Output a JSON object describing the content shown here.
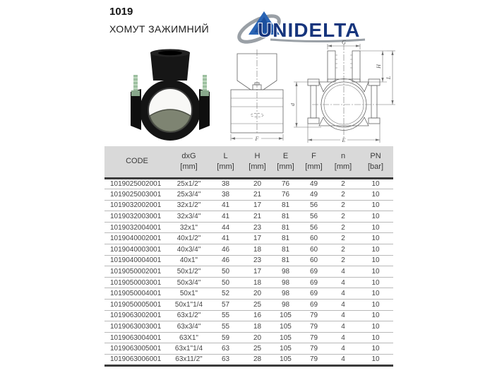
{
  "header": {
    "product_code": "1019",
    "product_name": "ХОМУТ ЗАЖИМНИЙ"
  },
  "logo": {
    "brand": "UNIDELTA",
    "colors": {
      "text": "#16357d",
      "triangle": "#2a64b4",
      "swoosh": "#9aa0a6"
    }
  },
  "drawings": {
    "side_view": {
      "dim_f": "F"
    },
    "section_view": {
      "dim_g": "G",
      "dim_h": "H",
      "dim_l": "L",
      "dim_d": "d",
      "dim_e": "E"
    }
  },
  "table": {
    "columns": [
      {
        "label": "CODE",
        "unit": ""
      },
      {
        "label": "dxG",
        "unit": "[mm]"
      },
      {
        "label": "L",
        "unit": "[mm]"
      },
      {
        "label": "H",
        "unit": "[mm]"
      },
      {
        "label": "E",
        "unit": "[mm]"
      },
      {
        "label": "F",
        "unit": "[mm]"
      },
      {
        "label": "n",
        "unit": "[mm]"
      },
      {
        "label": "PN",
        "unit": "[bar]"
      }
    ],
    "rows": [
      [
        "1019025002001",
        "25x1/2\"",
        "38",
        "20",
        "76",
        "49",
        "2",
        "10"
      ],
      [
        "1019025003001",
        "25x3/4\"",
        "38",
        "21",
        "76",
        "49",
        "2",
        "10"
      ],
      [
        "1019032002001",
        "32x1/2\"",
        "41",
        "17",
        "81",
        "56",
        "2",
        "10"
      ],
      [
        "1019032003001",
        "32x3/4\"",
        "41",
        "21",
        "81",
        "56",
        "2",
        "10"
      ],
      [
        "1019032004001",
        "32x1\"",
        "44",
        "23",
        "81",
        "56",
        "2",
        "10"
      ],
      [
        "1019040002001",
        "40x1/2\"",
        "41",
        "17",
        "81",
        "60",
        "2",
        "10"
      ],
      [
        "1019040003001",
        "40x3/4\"",
        "46",
        "18",
        "81",
        "60",
        "2",
        "10"
      ],
      [
        "1019040004001",
        "40x1\"",
        "46",
        "23",
        "81",
        "60",
        "2",
        "10"
      ],
      [
        "1019050002001",
        "50x1/2\"",
        "50",
        "17",
        "98",
        "69",
        "4",
        "10"
      ],
      [
        "1019050003001",
        "50x3/4\"",
        "50",
        "18",
        "98",
        "69",
        "4",
        "10"
      ],
      [
        "1019050004001",
        "50x1\"",
        "52",
        "20",
        "98",
        "69",
        "4",
        "10"
      ],
      [
        "1019050005001",
        "50x1\"1/4",
        "57",
        "25",
        "98",
        "69",
        "4",
        "10"
      ],
      [
        "1019063002001",
        "63x1/2\"",
        "55",
        "16",
        "105",
        "79",
        "4",
        "10"
      ],
      [
        "1019063003001",
        "63x3/4\"",
        "55",
        "18",
        "105",
        "79",
        "4",
        "10"
      ],
      [
        "1019063004001",
        "63X1\"",
        "59",
        "20",
        "105",
        "79",
        "4",
        "10"
      ],
      [
        "1019063005001",
        "63x1\"1/4",
        "63",
        "25",
        "105",
        "79",
        "4",
        "10"
      ],
      [
        "1019063006001",
        "63x11/2\"",
        "63",
        "28",
        "105",
        "79",
        "4",
        "10"
      ]
    ]
  }
}
